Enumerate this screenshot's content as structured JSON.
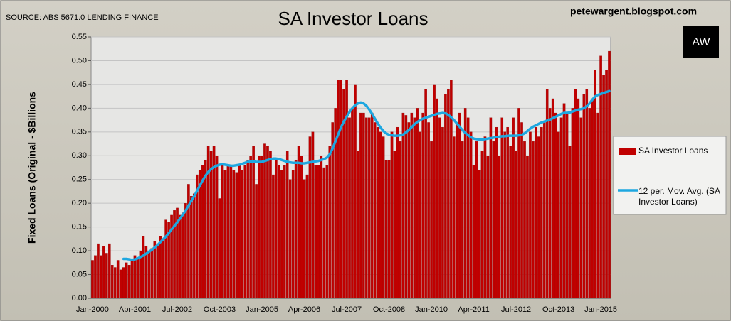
{
  "chart_data": {
    "type": "bar",
    "title": "SA Investor Loans",
    "source": "SOURCE: ABS 5671.0 LENDING FINANCE",
    "website": "petewargent.blogspot.com",
    "logo": "AW",
    "y_label": "Fixed Loans (Original - $Billions",
    "categories": [
      "Jan-2000",
      null,
      null,
      null,
      null,
      null,
      null,
      null,
      null,
      null,
      null,
      null,
      null,
      null,
      null,
      "Apr-2001",
      null,
      null,
      null,
      null,
      null,
      null,
      null,
      null,
      null,
      null,
      null,
      null,
      null,
      null,
      "Jul-2002",
      null,
      null,
      null,
      null,
      null,
      null,
      null,
      null,
      null,
      null,
      null,
      null,
      null,
      null,
      "Oct-2003",
      null,
      null,
      null,
      null,
      null,
      null,
      null,
      null,
      null,
      null,
      null,
      null,
      null,
      null,
      "Jan-2005",
      null,
      null,
      null,
      null,
      null,
      null,
      null,
      null,
      null,
      null,
      null,
      null,
      null,
      null,
      "Apr-2006",
      null,
      null,
      null,
      null,
      null,
      null,
      null,
      null,
      null,
      null,
      null,
      null,
      null,
      null,
      "Jul-2007",
      null,
      null,
      null,
      null,
      null,
      null,
      null,
      null,
      null,
      null,
      null,
      null,
      null,
      null,
      "Oct-2008",
      null,
      null,
      null,
      null,
      null,
      null,
      null,
      null,
      null,
      null,
      null,
      null,
      null,
      null,
      "Jan-2010",
      null,
      null,
      null,
      null,
      null,
      null,
      null,
      null,
      null,
      null,
      null,
      null,
      null,
      null,
      "Apr-2011",
      null,
      null,
      null,
      null,
      null,
      null,
      null,
      null,
      null,
      null,
      null,
      null,
      null,
      null,
      "Jul-2012",
      null,
      null,
      null,
      null,
      null,
      null,
      null,
      null,
      null,
      null,
      null,
      null,
      null,
      null,
      "Oct-2013",
      null,
      null,
      null,
      null,
      null,
      null,
      null,
      null,
      null,
      null,
      null,
      null,
      null,
      null,
      "Jan-2015",
      null,
      null,
      null
    ],
    "series": [
      {
        "name": "SA Investor Loans",
        "type": "bar",
        "color": "#c00000",
        "values": [
          0.08,
          0.09,
          0.115,
          0.09,
          0.11,
          0.095,
          0.115,
          0.07,
          0.065,
          0.08,
          0.06,
          0.065,
          0.075,
          0.07,
          0.08,
          0.09,
          0.085,
          0.1,
          0.13,
          0.11,
          0.1,
          0.105,
          0.12,
          0.115,
          0.13,
          0.12,
          0.165,
          0.16,
          0.175,
          0.185,
          0.19,
          0.175,
          0.18,
          0.2,
          0.24,
          0.215,
          0.22,
          0.26,
          0.27,
          0.28,
          0.29,
          0.32,
          0.31,
          0.32,
          0.3,
          0.21,
          0.285,
          0.27,
          0.28,
          0.28,
          0.27,
          0.265,
          0.28,
          0.27,
          0.28,
          0.29,
          0.3,
          0.32,
          0.24,
          0.3,
          0.3,
          0.325,
          0.32,
          0.31,
          0.26,
          0.29,
          0.28,
          0.27,
          0.28,
          0.31,
          0.25,
          0.27,
          0.29,
          0.32,
          0.3,
          0.25,
          0.26,
          0.34,
          0.35,
          0.28,
          0.28,
          0.3,
          0.275,
          0.28,
          0.32,
          0.37,
          0.4,
          0.46,
          0.46,
          0.44,
          0.46,
          0.38,
          0.4,
          0.45,
          0.31,
          0.39,
          0.39,
          0.38,
          0.38,
          0.39,
          0.37,
          0.36,
          0.35,
          0.34,
          0.29,
          0.29,
          0.35,
          0.31,
          0.36,
          0.33,
          0.39,
          0.385,
          0.37,
          0.39,
          0.38,
          0.4,
          0.35,
          0.39,
          0.44,
          0.37,
          0.33,
          0.45,
          0.42,
          0.38,
          0.36,
          0.43,
          0.44,
          0.46,
          0.34,
          0.37,
          0.39,
          0.33,
          0.4,
          0.38,
          0.35,
          0.28,
          0.33,
          0.27,
          0.31,
          0.34,
          0.3,
          0.38,
          0.33,
          0.36,
          0.3,
          0.38,
          0.35,
          0.36,
          0.32,
          0.38,
          0.31,
          0.4,
          0.37,
          0.33,
          0.3,
          0.35,
          0.33,
          0.36,
          0.34,
          0.36,
          0.37,
          0.44,
          0.4,
          0.42,
          0.39,
          0.35,
          0.38,
          0.41,
          0.39,
          0.32,
          0.4,
          0.44,
          0.42,
          0.38,
          0.43,
          0.44,
          0.4,
          0.42,
          0.48,
          0.39,
          0.51,
          0.47,
          0.48,
          0.52
        ]
      },
      {
        "name": "12 per. Mov. Avg. (SA Investor Loans)",
        "type": "line",
        "color": "#1ea7e0",
        "values": [
          null,
          null,
          null,
          null,
          null,
          null,
          null,
          null,
          null,
          null,
          null,
          0.083,
          0.083,
          0.082,
          0.081,
          0.082,
          0.084,
          0.087,
          0.09,
          0.094,
          0.098,
          0.102,
          0.107,
          0.112,
          0.118,
          0.124,
          0.13,
          0.137,
          0.145,
          0.152,
          0.16,
          0.168,
          0.176,
          0.185,
          0.195,
          0.205,
          0.215,
          0.226,
          0.237,
          0.248,
          0.258,
          0.266,
          0.272,
          0.276,
          0.279,
          0.281,
          0.282,
          0.281,
          0.28,
          0.279,
          0.279,
          0.28,
          0.281,
          0.283,
          0.285,
          0.287,
          0.288,
          0.288,
          0.287,
          0.287,
          0.287,
          0.289,
          0.291,
          0.293,
          0.294,
          0.294,
          0.293,
          0.291,
          0.289,
          0.287,
          0.286,
          0.285,
          0.285,
          0.285,
          0.284,
          0.284,
          0.285,
          0.286,
          0.287,
          0.288,
          0.289,
          0.291,
          0.293,
          0.296,
          0.303,
          0.315,
          0.33,
          0.345,
          0.36,
          0.372,
          0.382,
          0.392,
          0.4,
          0.406,
          0.41,
          0.412,
          0.41,
          0.405,
          0.397,
          0.388,
          0.378,
          0.368,
          0.359,
          0.352,
          0.347,
          0.344,
          0.343,
          0.342,
          0.342,
          0.343,
          0.345,
          0.349,
          0.354,
          0.36,
          0.366,
          0.371,
          0.375,
          0.378,
          0.38,
          0.382,
          0.384,
          0.386,
          0.388,
          0.389,
          0.39,
          0.389,
          0.386,
          0.381,
          0.375,
          0.368,
          0.361,
          0.354,
          0.348,
          0.343,
          0.339,
          0.336,
          0.335,
          0.334,
          0.334,
          0.335,
          0.336,
          0.337,
          0.338,
          0.339,
          0.34,
          0.341,
          0.341,
          0.342,
          0.342,
          0.342,
          0.342,
          0.343,
          0.344,
          0.347,
          0.352,
          0.357,
          0.361,
          0.364,
          0.367,
          0.37,
          0.372,
          0.374,
          0.376,
          0.379,
          0.382,
          0.385,
          0.388,
          0.39,
          0.39,
          0.391,
          0.393,
          0.395,
          0.397,
          0.398,
          0.4,
          0.404,
          0.41,
          0.418,
          0.425,
          0.428,
          0.43,
          0.432,
          0.434,
          0.436
        ]
      }
    ],
    "ylim": [
      0,
      0.55
    ],
    "yticks": [
      {
        "value": 0,
        "label": "0.00"
      },
      {
        "value": 0.05,
        "label": "0.05"
      },
      {
        "value": 0.1,
        "label": "0.10"
      },
      {
        "value": 0.15,
        "label": "0.15"
      },
      {
        "value": 0.2,
        "label": "0.20"
      },
      {
        "value": 0.25,
        "label": "0.25"
      },
      {
        "value": 0.3,
        "label": "0.30"
      },
      {
        "value": 0.35,
        "label": "0.35"
      },
      {
        "value": 0.4,
        "label": "0.40"
      },
      {
        "value": 0.45,
        "label": "0.45"
      },
      {
        "value": 0.5,
        "label": "0.50"
      },
      {
        "value": 0.55,
        "label": "0.55"
      }
    ],
    "grid": true,
    "legend_position": "right"
  }
}
